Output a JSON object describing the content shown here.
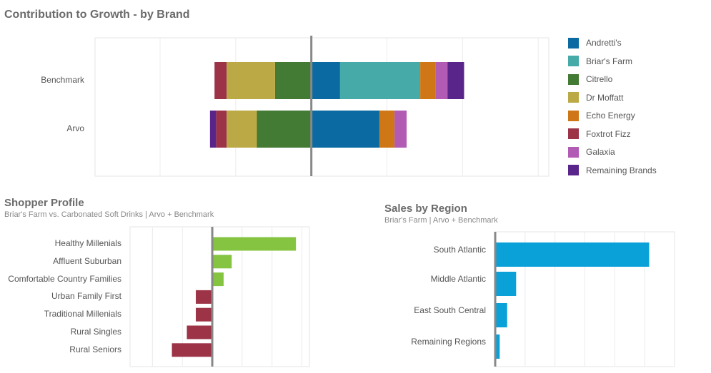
{
  "chart_data": [
    {
      "type": "bar",
      "orientation": "horizontal",
      "stacked": true,
      "title": "Contribution to Growth - by Brand",
      "categories": [
        "Benchmark",
        "Arvo"
      ],
      "series": [
        {
          "name": "Andretti's",
          "color": "#0a6aa1",
          "values": [
            1.9,
            4.5
          ]
        },
        {
          "name": "Briar's Farm",
          "color": "#45aaa8",
          "values": [
            5.3,
            0
          ]
        },
        {
          "name": "Citrello",
          "color": "#437a34",
          "values": [
            -2.4,
            -3.6
          ]
        },
        {
          "name": "Dr Moffatt",
          "color": "#bba946",
          "values": [
            -3.2,
            -2.0
          ]
        },
        {
          "name": "Echo Energy",
          "color": "#cf7716",
          "values": [
            1.0,
            1.0
          ]
        },
        {
          "name": "Foxtrot Fizz",
          "color": "#9c3347",
          "values": [
            -0.8,
            -0.7
          ]
        },
        {
          "name": "Galaxia",
          "color": "#b15bb5",
          "values": [
            0.8,
            0.8
          ]
        },
        {
          "name": "Remaining Brands",
          "color": "#59258b",
          "values": [
            1.1,
            -0.4
          ]
        }
      ],
      "xlim": [
        -14.3,
        15.7
      ],
      "legend": "right",
      "grid": true
    },
    {
      "type": "bar",
      "orientation": "horizontal",
      "title": "Shopper Profile",
      "subtitle": "Briar's Farm vs. Carbonated Soft Drinks | Arvo + Benchmark",
      "categories": [
        "Healthy Millenials",
        "Affluent Suburban",
        "Comfortable Country Families",
        "Urban Family First",
        "Traditional Millenials",
        "Rural Singles",
        "Rural Seniors"
      ],
      "values": [
        28,
        6.5,
        3.8,
        -5.5,
        -5.5,
        -8.5,
        -13.5
      ],
      "positive_color": "#84c441",
      "negative_color": "#9c3347",
      "xlim": [
        -27.5,
        32.5
      ],
      "grid": true
    },
    {
      "type": "bar",
      "orientation": "horizontal",
      "title": "Sales by Region",
      "subtitle": "Briar's Farm | Arvo + Benchmark",
      "categories": [
        "South  Atlantic",
        "Middle  Atlantic",
        "East South Central",
        "Remaining Regions"
      ],
      "values": [
        10.3,
        1.4,
        0.8,
        0.3
      ],
      "color": "#0aa0d8",
      "xlim": [
        0,
        12
      ],
      "grid": true
    }
  ]
}
